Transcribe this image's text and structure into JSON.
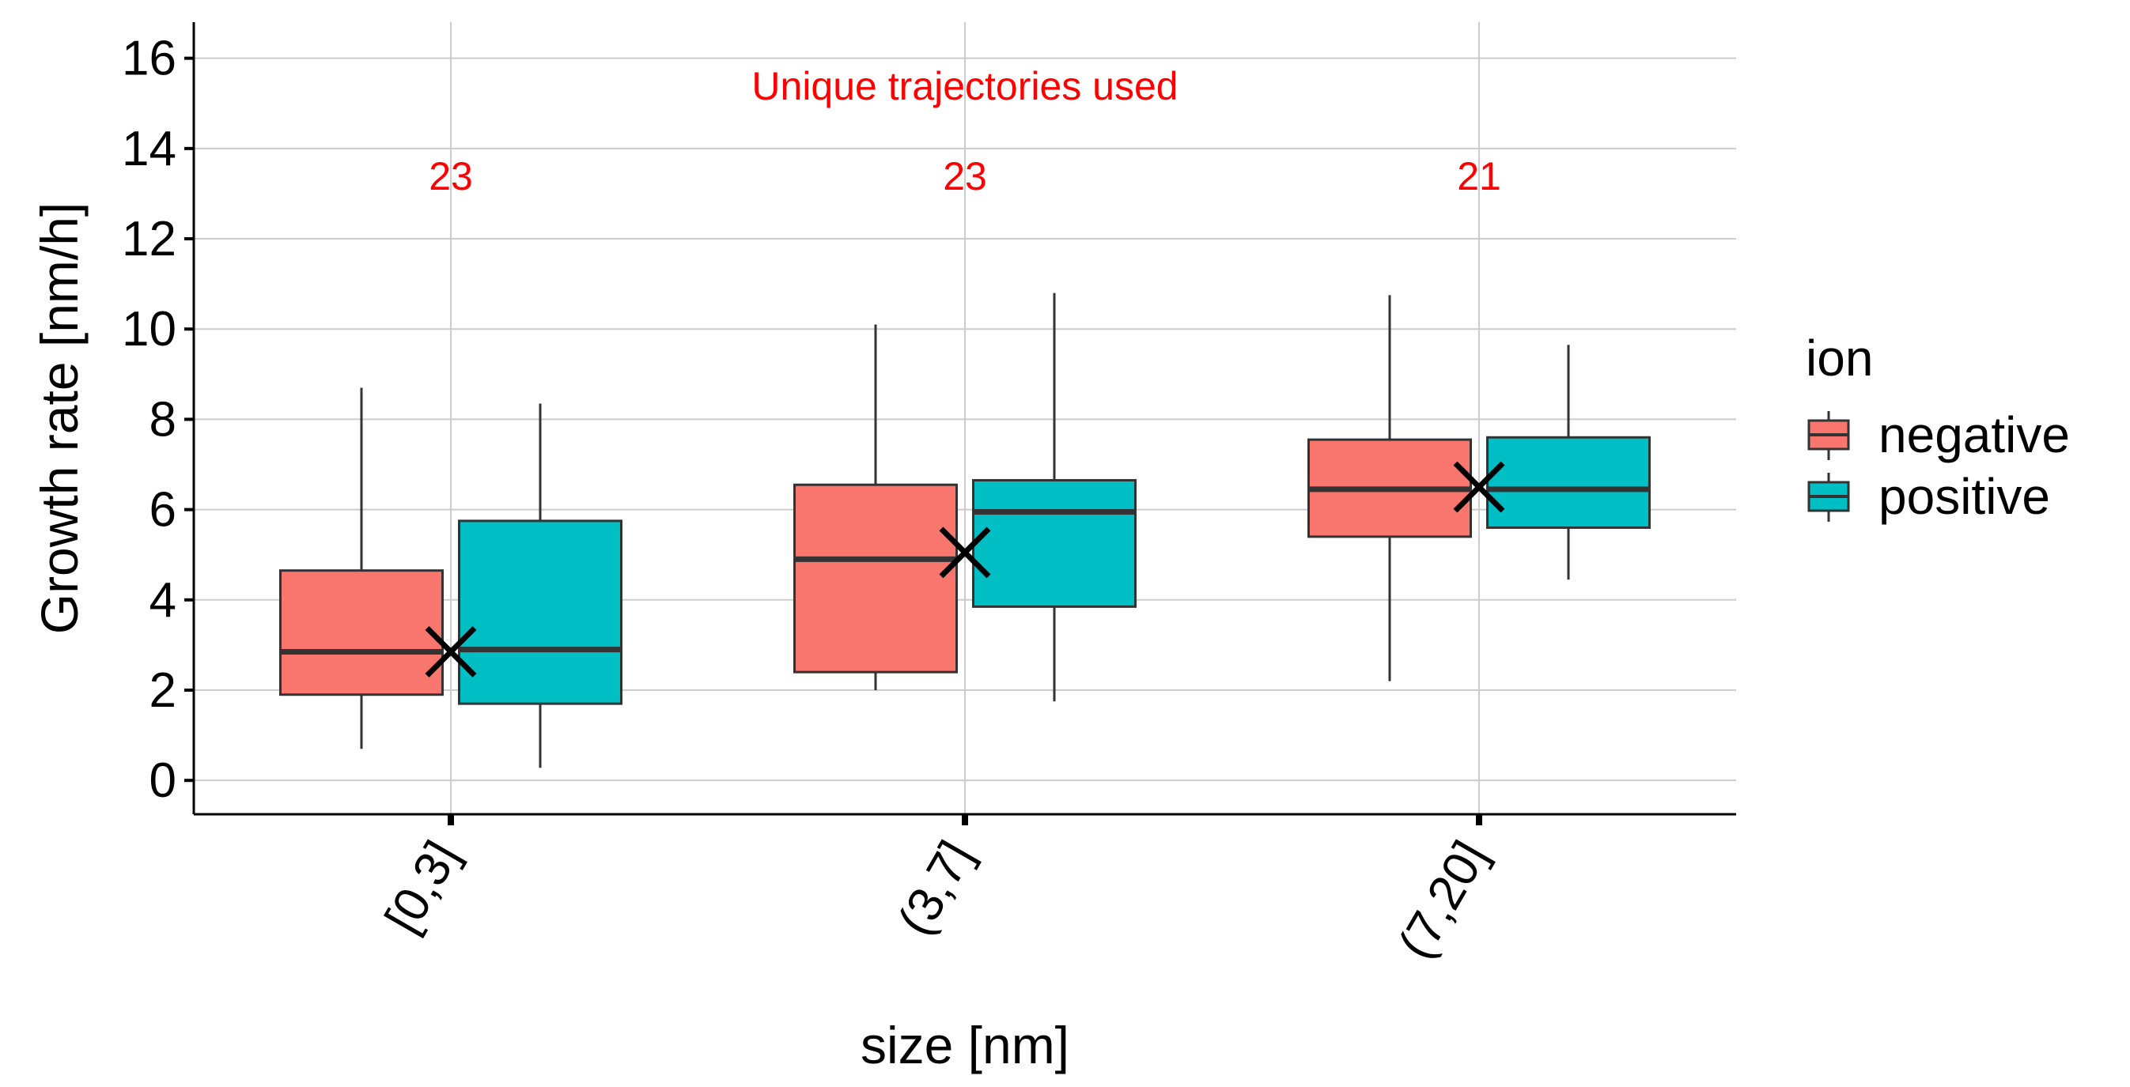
{
  "chart_data": {
    "type": "box",
    "title": "",
    "xlabel": "size [nm]",
    "ylabel": "Growth rate [nm/h]",
    "ylim": [
      -0.75,
      16.8
    ],
    "yticks": [
      0,
      2,
      4,
      6,
      8,
      10,
      12,
      14,
      16
    ],
    "grid": true,
    "legend": {
      "title": "ion",
      "position": "right"
    },
    "categories": [
      "[0,3]",
      "(3,7]",
      "(7,20]"
    ],
    "series": [
      {
        "name": "negative",
        "color": "#F8766D",
        "boxes": [
          {
            "whisker_low": 0.7,
            "q1": 1.9,
            "median": 2.85,
            "q3": 4.65,
            "whisker_high": 8.7
          },
          {
            "whisker_low": 2.0,
            "q1": 2.4,
            "median": 4.9,
            "q3": 6.55,
            "whisker_high": 10.1
          },
          {
            "whisker_low": 2.2,
            "q1": 5.4,
            "median": 6.45,
            "q3": 7.55,
            "whisker_high": 10.75
          }
        ]
      },
      {
        "name": "positive",
        "color": "#00BFC4",
        "boxes": [
          {
            "whisker_low": 0.28,
            "q1": 1.7,
            "median": 2.9,
            "q3": 5.75,
            "whisker_high": 8.35
          },
          {
            "whisker_low": 1.75,
            "q1": 3.85,
            "median": 5.95,
            "q3": 6.65,
            "whisker_high": 10.8
          },
          {
            "whisker_low": 4.45,
            "q1": 5.6,
            "median": 6.45,
            "q3": 7.6,
            "whisker_high": 9.65
          }
        ]
      }
    ],
    "means": [
      2.85,
      5.05,
      6.5
    ],
    "annotations": {
      "heading": "Unique trajectories used",
      "heading_y": 15.4,
      "counts": [
        "23",
        "23",
        "21"
      ],
      "counts_y": 13.4
    }
  }
}
